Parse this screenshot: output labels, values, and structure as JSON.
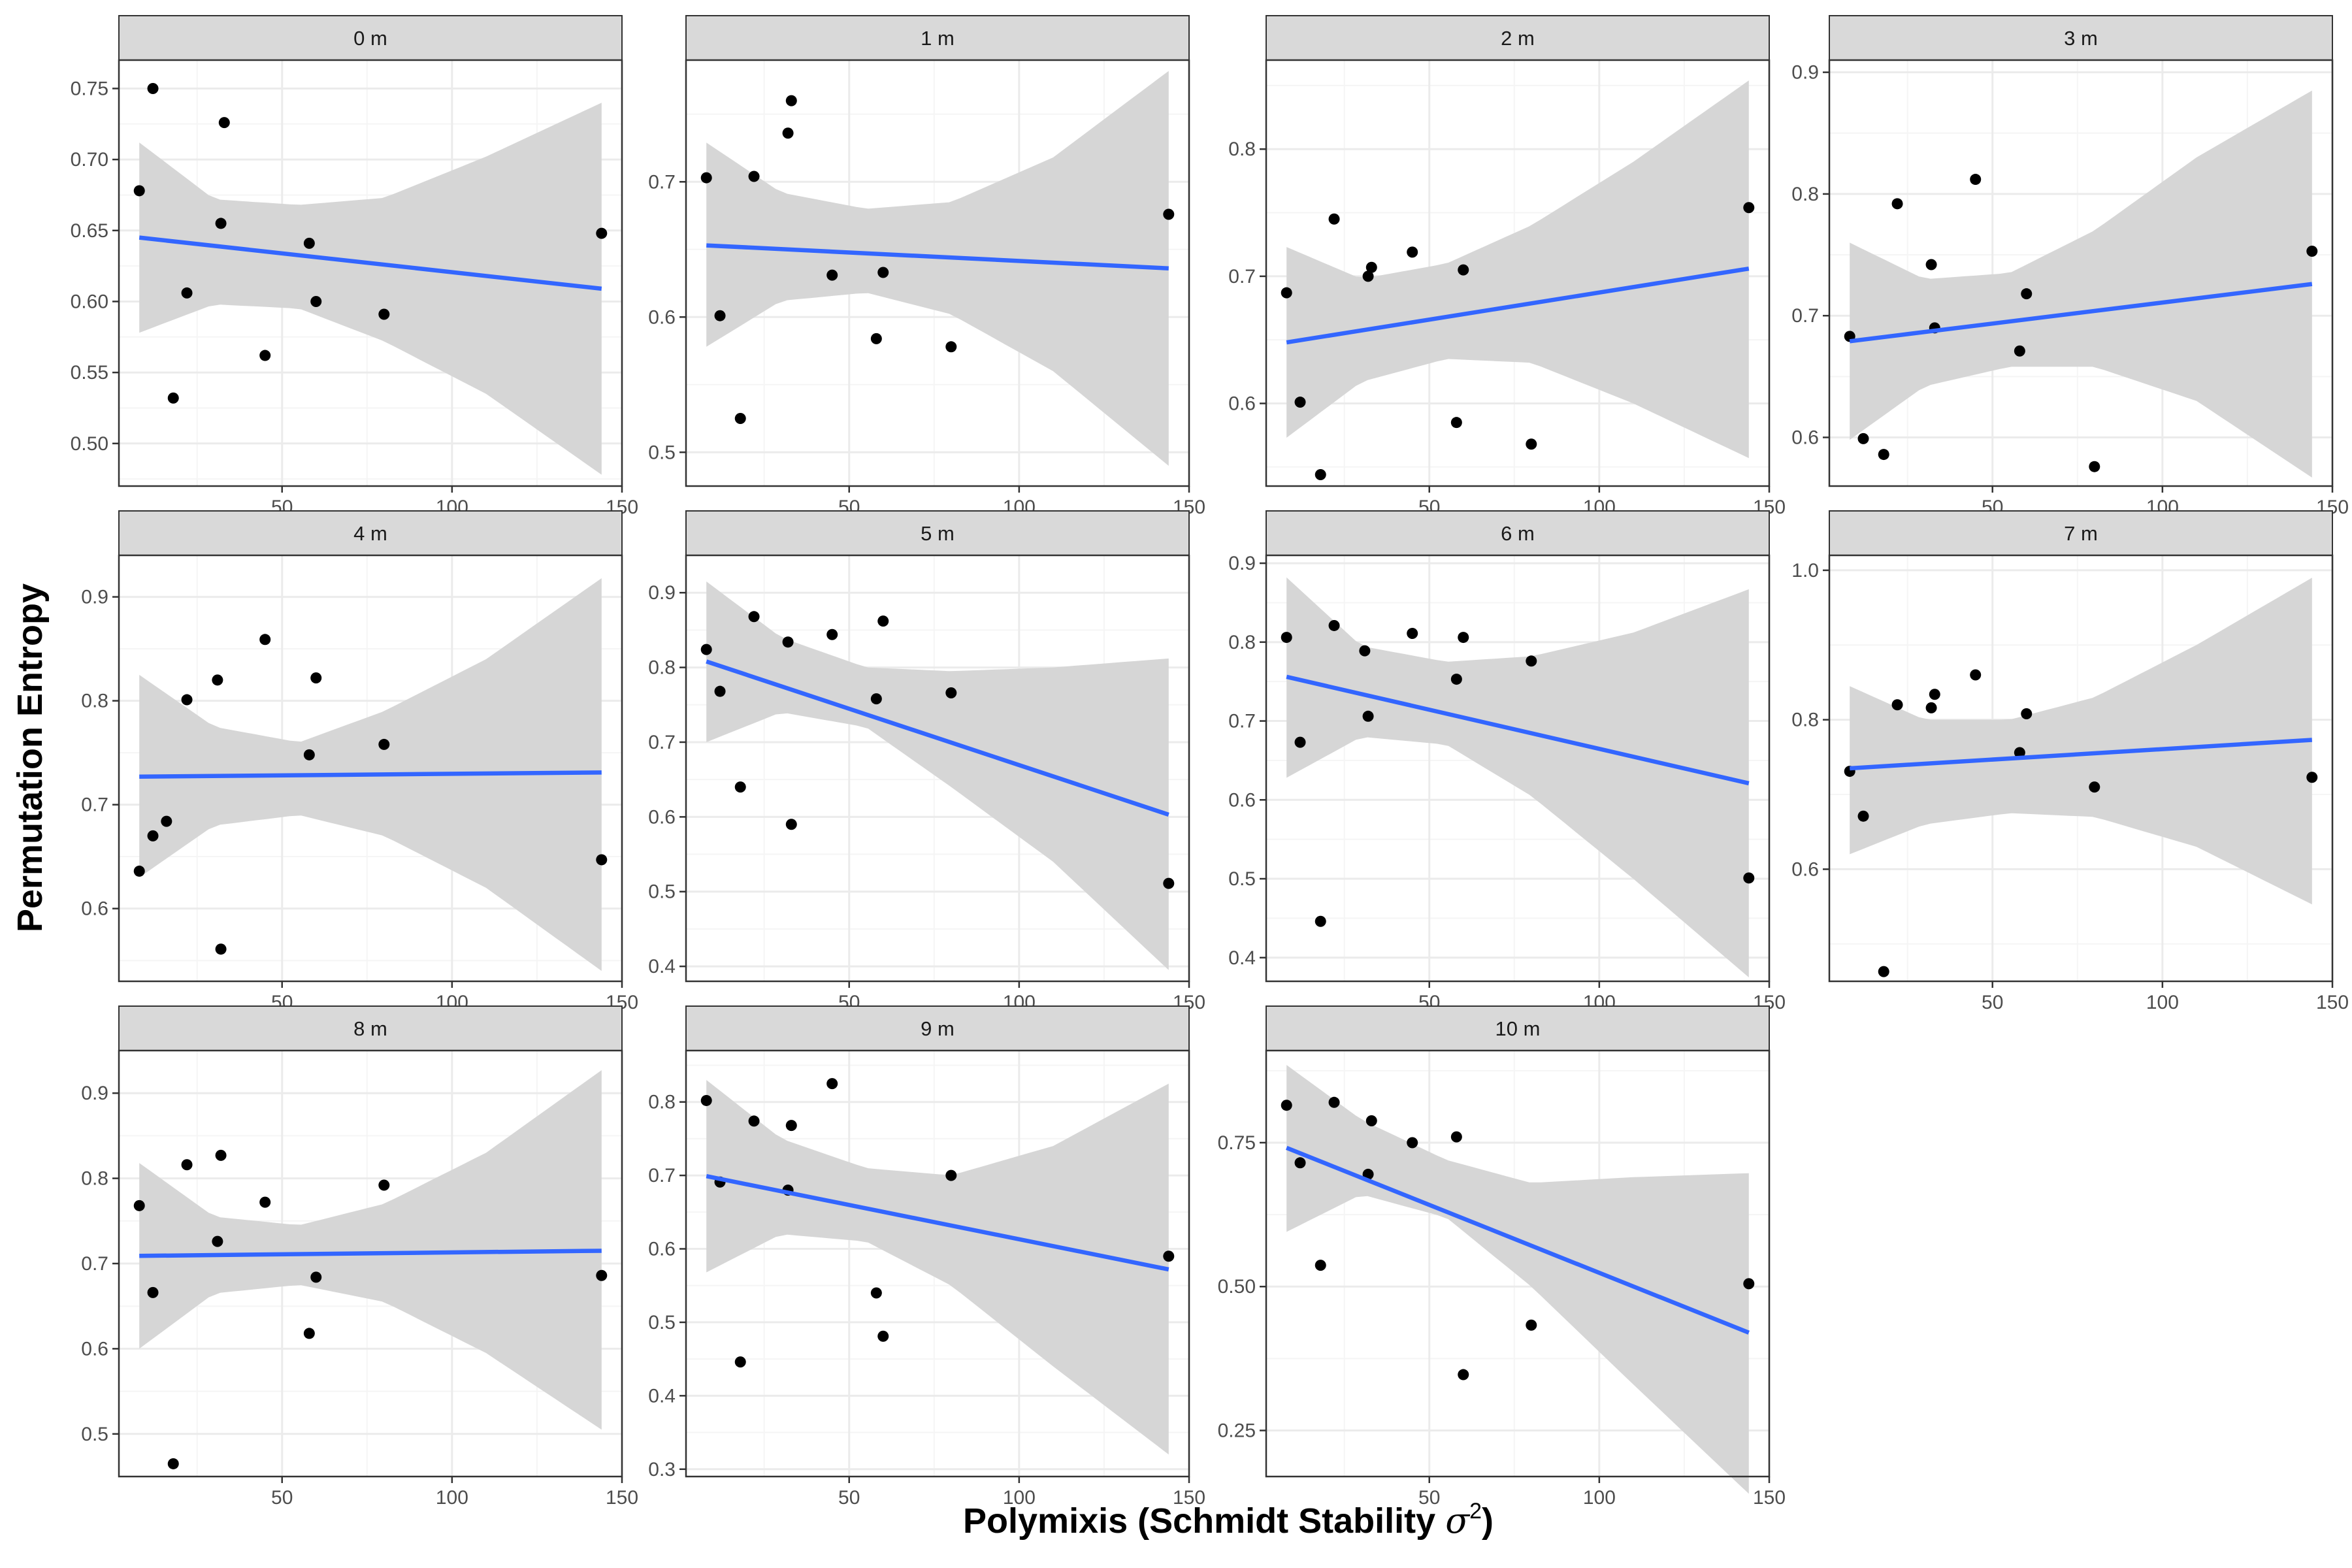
{
  "figure": {
    "ylabel": "Permutation Entropy",
    "xlabel_main": "Polymixis (Schmidt Stability ",
    "xlabel_symbol": "σ",
    "xlabel_sup": "2",
    "xlabel_close": ")"
  },
  "colors": {
    "line": "#3366ff",
    "ribbon": "#d6d6d6",
    "point": "#000000",
    "strip": "#d9d9d9",
    "grid_major": "#ebebeb",
    "grid_minor": "#f5f5f5"
  },
  "chart_data": [
    {
      "type": "scatter",
      "title": "0 m",
      "xlim": [
        2,
        150
      ],
      "ylim": [
        0.47,
        0.77
      ],
      "xticks": [
        50,
        100,
        150
      ],
      "xtick_labels": [
        "50",
        "100",
        "150"
      ],
      "yticks": [
        0.5,
        0.55,
        0.6,
        0.65,
        0.7,
        0.75
      ],
      "ytick_labels": [
        "0.50",
        "0.55",
        "0.60",
        "0.65",
        "0.70",
        "0.75"
      ],
      "x": [
        8,
        12,
        18,
        22,
        32,
        33,
        45,
        58,
        60,
        80,
        144
      ],
      "y": [
        0.678,
        0.75,
        0.532,
        0.606,
        0.655,
        0.726,
        0.562,
        0.641,
        0.6,
        0.591,
        0.648
      ],
      "fit": {
        "x": [
          8,
          144
        ],
        "y": [
          0.645,
          0.609
        ]
      },
      "ci": {
        "x": [
          8,
          30,
          55,
          80,
          110,
          144
        ],
        "lower": [
          0.578,
          0.598,
          0.595,
          0.572,
          0.535,
          0.478
        ],
        "upper": [
          0.712,
          0.672,
          0.668,
          0.673,
          0.702,
          0.74
        ]
      }
    },
    {
      "type": "scatter",
      "title": "1 m",
      "xlim": [
        2,
        150
      ],
      "ylim": [
        0.475,
        0.79
      ],
      "xticks": [
        50,
        100,
        150
      ],
      "xtick_labels": [
        "50",
        "100",
        "150"
      ],
      "yticks": [
        0.5,
        0.6,
        0.7
      ],
      "ytick_labels": [
        "0.5",
        "0.6",
        "0.7"
      ],
      "x": [
        8,
        12,
        18,
        22,
        32,
        33,
        45,
        58,
        60,
        80,
        144
      ],
      "y": [
        0.703,
        0.601,
        0.525,
        0.704,
        0.736,
        0.76,
        0.631,
        0.584,
        0.633,
        0.578,
        0.676
      ],
      "fit": {
        "x": [
          8,
          144
        ],
        "y": [
          0.653,
          0.636
        ]
      },
      "ci": {
        "x": [
          8,
          30,
          55,
          80,
          110,
          144
        ],
        "lower": [
          0.578,
          0.612,
          0.618,
          0.602,
          0.56,
          0.49
        ],
        "upper": [
          0.729,
          0.692,
          0.68,
          0.685,
          0.718,
          0.782
        ]
      }
    },
    {
      "type": "scatter",
      "title": "2 m",
      "xlim": [
        2,
        150
      ],
      "ylim": [
        0.535,
        0.87
      ],
      "xticks": [
        50,
        100,
        150
      ],
      "xtick_labels": [
        "50",
        "100",
        "150"
      ],
      "yticks": [
        0.6,
        0.7,
        0.8
      ],
      "ytick_labels": [
        "0.6",
        "0.7",
        "0.8"
      ],
      "x": [
        8,
        12,
        18,
        22,
        32,
        33,
        45,
        58,
        60,
        80,
        144
      ],
      "y": [
        0.687,
        0.601,
        0.544,
        0.745,
        0.7,
        0.707,
        0.719,
        0.585,
        0.705,
        0.568,
        0.754
      ],
      "fit": {
        "x": [
          8,
          144
        ],
        "y": [
          0.648,
          0.706
        ]
      },
      "ci": {
        "x": [
          8,
          30,
          55,
          80,
          110,
          144
        ],
        "lower": [
          0.573,
          0.617,
          0.635,
          0.632,
          0.6,
          0.557
        ],
        "upper": [
          0.723,
          0.698,
          0.71,
          0.74,
          0.79,
          0.854
        ]
      }
    },
    {
      "type": "scatter",
      "title": "3 m",
      "xlim": [
        2,
        150
      ],
      "ylim": [
        0.56,
        0.91
      ],
      "xticks": [
        50,
        100,
        150
      ],
      "xtick_labels": [
        "50",
        "100",
        "150"
      ],
      "yticks": [
        0.6,
        0.7,
        0.8,
        0.9
      ],
      "ytick_labels": [
        "0.6",
        "0.7",
        "0.8",
        "0.9"
      ],
      "x": [
        8,
        12,
        18,
        22,
        32,
        33,
        45,
        58,
        60,
        80,
        144
      ],
      "y": [
        0.683,
        0.599,
        0.586,
        0.792,
        0.742,
        0.69,
        0.812,
        0.671,
        0.718,
        0.576,
        0.753
      ],
      "fit": {
        "x": [
          8,
          144
        ],
        "y": [
          0.679,
          0.726
        ]
      },
      "ci": {
        "x": [
          8,
          30,
          55,
          80,
          110,
          144
        ],
        "lower": [
          0.598,
          0.642,
          0.658,
          0.658,
          0.63,
          0.567
        ],
        "upper": [
          0.76,
          0.73,
          0.735,
          0.77,
          0.83,
          0.885
        ]
      }
    },
    {
      "type": "scatter",
      "title": "4 m",
      "xlim": [
        2,
        150
      ],
      "ylim": [
        0.53,
        0.94
      ],
      "xticks": [
        50,
        100,
        150
      ],
      "xtick_labels": [
        "50",
        "100",
        "150"
      ],
      "yticks": [
        0.6,
        0.7,
        0.8,
        0.9
      ],
      "ytick_labels": [
        "0.6",
        "0.7",
        "0.8",
        "0.9"
      ],
      "x": [
        8,
        12,
        16,
        22,
        31,
        32,
        45,
        58,
        60,
        80,
        144
      ],
      "y": [
        0.636,
        0.67,
        0.684,
        0.801,
        0.82,
        0.561,
        0.859,
        0.748,
        0.822,
        0.758,
        0.647
      ],
      "fit": {
        "x": [
          8,
          144
        ],
        "y": [
          0.727,
          0.731
        ]
      },
      "ci": {
        "x": [
          8,
          30,
          55,
          80,
          110,
          144
        ],
        "lower": [
          0.63,
          0.68,
          0.69,
          0.67,
          0.62,
          0.54
        ],
        "upper": [
          0.825,
          0.775,
          0.76,
          0.79,
          0.84,
          0.918
        ]
      }
    },
    {
      "type": "scatter",
      "title": "5 m",
      "xlim": [
        2,
        150
      ],
      "ylim": [
        0.38,
        0.95
      ],
      "xticks": [
        50,
        100,
        150
      ],
      "xtick_labels": [
        "50",
        "100",
        "150"
      ],
      "yticks": [
        0.4,
        0.5,
        0.6,
        0.7,
        0.8,
        0.9
      ],
      "ytick_labels": [
        "0.4",
        "0.5",
        "0.6",
        "0.7",
        "0.8",
        "0.9"
      ],
      "x": [
        8,
        12,
        18,
        22,
        32,
        33,
        45,
        58,
        60,
        80,
        144
      ],
      "y": [
        0.824,
        0.768,
        0.64,
        0.868,
        0.834,
        0.59,
        0.844,
        0.758,
        0.862,
        0.766,
        0.511
      ],
      "fit": {
        "x": [
          8,
          144
        ],
        "y": [
          0.808,
          0.603
        ]
      },
      "ci": {
        "x": [
          8,
          30,
          55,
          80,
          110,
          144
        ],
        "lower": [
          0.7,
          0.74,
          0.72,
          0.64,
          0.54,
          0.395
        ],
        "upper": [
          0.915,
          0.84,
          0.8,
          0.795,
          0.8,
          0.812
        ]
      }
    },
    {
      "type": "scatter",
      "title": "6 m",
      "xlim": [
        2,
        150
      ],
      "ylim": [
        0.37,
        0.91
      ],
      "xticks": [
        50,
        100,
        150
      ],
      "xtick_labels": [
        "50",
        "100",
        "150"
      ],
      "yticks": [
        0.4,
        0.5,
        0.6,
        0.7,
        0.8,
        0.9
      ],
      "ytick_labels": [
        "0.4",
        "0.5",
        "0.6",
        "0.7",
        "0.8",
        "0.9"
      ],
      "x": [
        8,
        12,
        18,
        22,
        31,
        32,
        45,
        58,
        60,
        80,
        144
      ],
      "y": [
        0.806,
        0.673,
        0.446,
        0.821,
        0.789,
        0.706,
        0.811,
        0.753,
        0.806,
        0.776,
        0.501
      ],
      "fit": {
        "x": [
          8,
          144
        ],
        "y": [
          0.756,
          0.621
        ]
      },
      "ci": {
        "x": [
          8,
          30,
          55,
          80,
          110,
          144
        ],
        "lower": [
          0.628,
          0.68,
          0.67,
          0.605,
          0.5,
          0.375
        ],
        "upper": [
          0.882,
          0.795,
          0.775,
          0.782,
          0.812,
          0.867
        ]
      }
    },
    {
      "type": "scatter",
      "title": "7 m",
      "xlim": [
        2,
        150
      ],
      "ylim": [
        0.45,
        1.02
      ],
      "xticks": [
        50,
        100,
        150
      ],
      "xtick_labels": [
        "50",
        "100",
        "150"
      ],
      "yticks": [
        0.6,
        0.8,
        1.0
      ],
      "ytick_labels": [
        "0.6",
        "0.8",
        "1.0"
      ],
      "x": [
        8,
        12,
        18,
        22,
        32,
        33,
        45,
        58,
        60,
        80,
        144
      ],
      "y": [
        0.731,
        0.671,
        0.463,
        0.82,
        0.816,
        0.834,
        0.86,
        0.756,
        0.808,
        0.71,
        0.723
      ],
      "fit": {
        "x": [
          8,
          144
        ],
        "y": [
          0.735,
          0.773
        ]
      },
      "ci": {
        "x": [
          8,
          30,
          55,
          80,
          110,
          144
        ],
        "lower": [
          0.62,
          0.66,
          0.675,
          0.67,
          0.63,
          0.553
        ],
        "upper": [
          0.845,
          0.8,
          0.8,
          0.83,
          0.9,
          0.99
        ]
      }
    },
    {
      "type": "scatter",
      "title": "8 m",
      "xlim": [
        2,
        150
      ],
      "ylim": [
        0.45,
        0.95
      ],
      "xticks": [
        50,
        100,
        150
      ],
      "xtick_labels": [
        "50",
        "100",
        "150"
      ],
      "yticks": [
        0.5,
        0.6,
        0.7,
        0.8,
        0.9
      ],
      "ytick_labels": [
        "0.5",
        "0.6",
        "0.7",
        "0.8",
        "0.9"
      ],
      "x": [
        8,
        12,
        18,
        22,
        31,
        32,
        45,
        58,
        60,
        80,
        144
      ],
      "y": [
        0.768,
        0.666,
        0.465,
        0.816,
        0.726,
        0.827,
        0.772,
        0.618,
        0.684,
        0.792,
        0.686
      ],
      "fit": {
        "x": [
          8,
          144
        ],
        "y": [
          0.709,
          0.715
        ]
      },
      "ci": {
        "x": [
          8,
          30,
          55,
          80,
          110,
          144
        ],
        "lower": [
          0.6,
          0.665,
          0.675,
          0.655,
          0.595,
          0.505
        ],
        "upper": [
          0.818,
          0.755,
          0.745,
          0.77,
          0.83,
          0.927
        ]
      }
    },
    {
      "type": "scatter",
      "title": "9 m",
      "xlim": [
        2,
        150
      ],
      "ylim": [
        0.29,
        0.87
      ],
      "xticks": [
        50,
        100,
        150
      ],
      "xtick_labels": [
        "50",
        "100",
        "150"
      ],
      "yticks": [
        0.3,
        0.4,
        0.5,
        0.6,
        0.7,
        0.8
      ],
      "ytick_labels": [
        "0.3",
        "0.4",
        "0.5",
        "0.6",
        "0.7",
        "0.8"
      ],
      "x": [
        8,
        12,
        18,
        22,
        32,
        33,
        45,
        58,
        60,
        80,
        144
      ],
      "y": [
        0.802,
        0.691,
        0.446,
        0.774,
        0.68,
        0.768,
        0.825,
        0.54,
        0.481,
        0.7,
        0.59
      ],
      "fit": {
        "x": [
          8,
          144
        ],
        "y": [
          0.699,
          0.572
        ]
      },
      "ci": {
        "x": [
          8,
          30,
          55,
          80,
          110,
          144
        ],
        "lower": [
          0.568,
          0.62,
          0.61,
          0.55,
          0.44,
          0.32
        ],
        "upper": [
          0.83,
          0.75,
          0.71,
          0.7,
          0.74,
          0.825
        ]
      }
    },
    {
      "type": "scatter",
      "title": "10 m",
      "xlim": [
        2,
        150
      ],
      "ylim": [
        0.17,
        0.91
      ],
      "xticks": [
        50,
        100,
        150
      ],
      "xtick_labels": [
        "50",
        "100",
        "150"
      ],
      "yticks": [
        0.25,
        0.5,
        0.75
      ],
      "ytick_labels": [
        "0.25",
        "0.50",
        "0.75"
      ],
      "x": [
        8,
        12,
        18,
        22,
        32,
        33,
        45,
        58,
        60,
        80,
        144
      ],
      "y": [
        0.815,
        0.715,
        0.537,
        0.82,
        0.695,
        0.788,
        0.75,
        0.76,
        0.347,
        0.433,
        0.505
      ],
      "fit": {
        "x": [
          8,
          144
        ],
        "y": [
          0.741,
          0.42
        ]
      },
      "ci": {
        "x": [
          8,
          30,
          55,
          80,
          110,
          144
        ],
        "lower": [
          0.595,
          0.66,
          0.62,
          0.5,
          0.33,
          0.14
        ],
        "upper": [
          0.885,
          0.79,
          0.72,
          0.68,
          0.69,
          0.697
        ]
      }
    }
  ]
}
